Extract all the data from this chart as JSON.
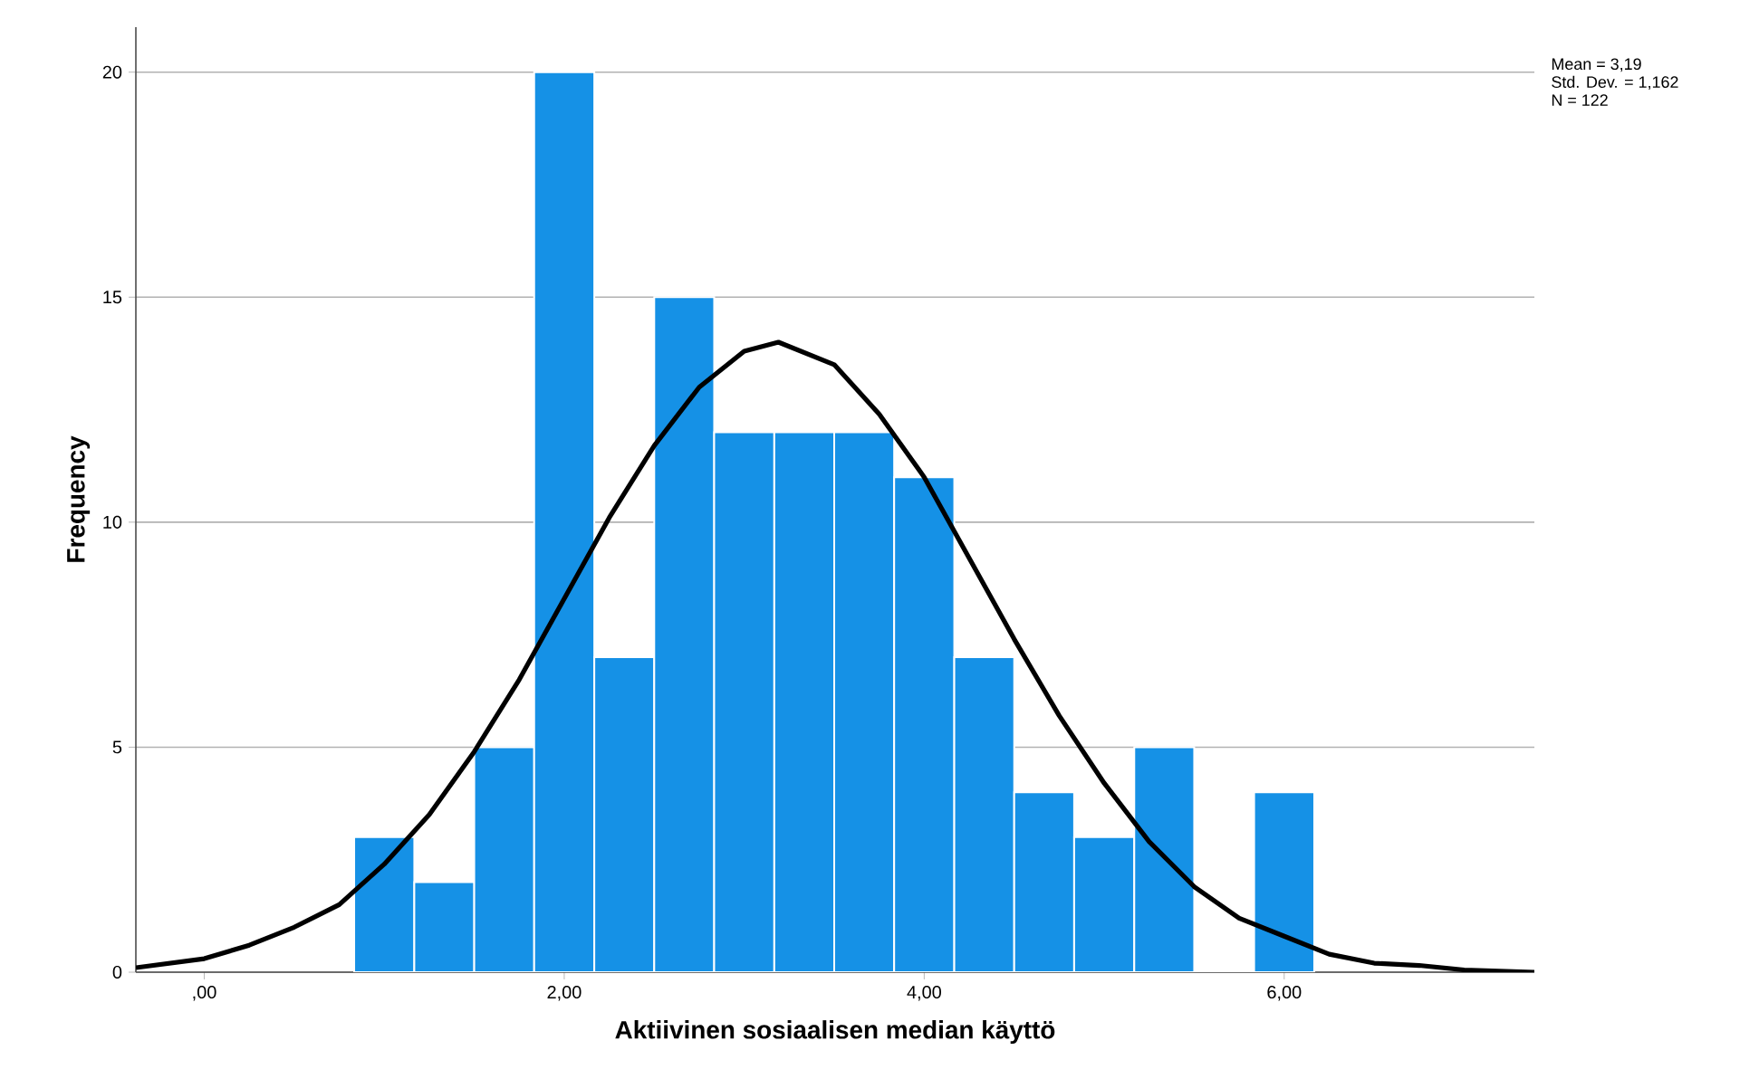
{
  "chart_data": {
    "type": "histogram",
    "xlabel": "Aktiivinen sosiaalisen median käyttö",
    "ylabel": "Frequency",
    "series": [
      {
        "color": "#1591e6",
        "bins": [
          0.833,
          1.167,
          1.5,
          1.833,
          2.167,
          2.5,
          2.833,
          3.167,
          3.5,
          3.833,
          4.167,
          4.5,
          4.833,
          5.167,
          5.5,
          5.833,
          6.167
        ],
        "values": [
          3,
          2,
          5,
          20,
          7,
          15,
          12,
          12,
          12,
          11,
          7,
          4,
          3,
          5,
          0,
          4
        ]
      },
      {
        "type": "line",
        "color": "#000000",
        "x": [
          -0.38,
          0,
          0.25,
          0.5,
          0.75,
          1,
          1.25,
          1.5,
          1.75,
          2,
          2.25,
          2.5,
          2.75,
          3,
          3.19,
          3.5,
          3.75,
          4,
          4.25,
          4.5,
          4.75,
          5,
          5.25,
          5.5,
          5.75,
          6,
          6.25,
          6.5,
          6.75,
          7,
          7.39
        ],
        "values": [
          0.1,
          0.3,
          0.6,
          1,
          1.5,
          2.4,
          3.5,
          4.9,
          6.5,
          8.3,
          10.1,
          11.7,
          13,
          13.8,
          14,
          13.5,
          12.4,
          11,
          9.2,
          7.4,
          5.7,
          4.2,
          2.9,
          1.9,
          1.2,
          0.8,
          0.4,
          0.2,
          0.15,
          0.05,
          0
        ]
      }
    ],
    "xlim": [
      -0.38,
      7.39
    ],
    "ylim": [
      0,
      21
    ],
    "xticks": [
      {
        "value": 0,
        "label": ",00"
      },
      {
        "value": 2,
        "label": "2,00"
      },
      {
        "value": 4,
        "label": "4,00"
      },
      {
        "value": 6,
        "label": "6,00"
      }
    ],
    "yticks": [
      0,
      5,
      10,
      15,
      20
    ],
    "grid": "y",
    "annotations": [
      "Mean = 3,19",
      "Std. Dev. = 1,162",
      "N = 122"
    ]
  }
}
